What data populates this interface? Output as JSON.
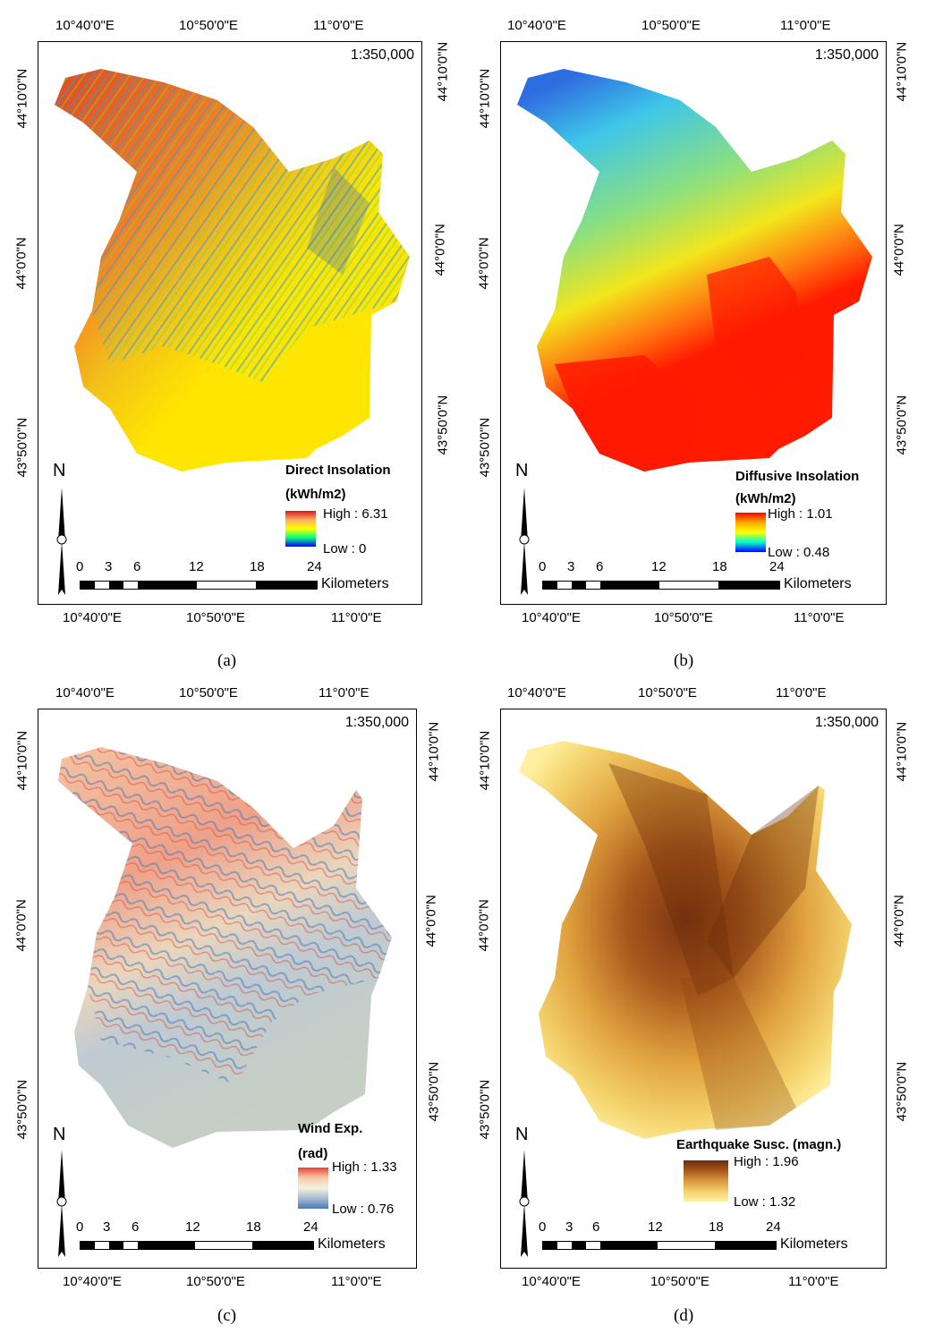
{
  "panels": [
    {
      "id": "a",
      "caption": "(a)",
      "scale_ratio": "1:350,000",
      "north_label": "N",
      "top_ticks": [
        "10°40'0\"E",
        "10°50'0\"E",
        "11°0'0\"E"
      ],
      "bottom_ticks": [
        "10°40'0\"E",
        "10°50'0\"E",
        "11°0'0\"E"
      ],
      "left_ticks": [
        "44°10'0\"N",
        "44°0'0\"N",
        "43°50'0\"N"
      ],
      "right_ticks": [
        "44°10'0\"N",
        "44°0'0\"N",
        "43°50'0\"N"
      ],
      "legend": {
        "title": "Direct Insolation",
        "unit": "(kWh/m2)",
        "high": "High : 6.31",
        "low": "Low : 0",
        "ramp": [
          "#d7191c",
          "#fdae61",
          "#ffff00",
          "#00ff80",
          "#0000ff"
        ]
      },
      "scalebar": {
        "labels": [
          "0",
          "3",
          "6",
          "12",
          "18",
          "24"
        ],
        "units": "Kilometers"
      }
    },
    {
      "id": "b",
      "caption": "(b)",
      "scale_ratio": "1:350,000",
      "north_label": "N",
      "top_ticks": [
        "10°40'0\"E",
        "10°50'0\"E",
        "11°0'0\"E"
      ],
      "bottom_ticks": [
        "10°40'0\"E",
        "10°50'0\"E",
        "11°0'0\"E"
      ],
      "left_ticks": [
        "44°10'0\"N",
        "44°0'0\"N",
        "43°50'0\"N"
      ],
      "right_ticks": [
        "44°10'0\"N",
        "44°0'0\"N",
        "43°50'0\"N"
      ],
      "legend": {
        "title": "Diffusive Insolation",
        "unit": "(kWh/m2)",
        "high": "High : 1.01",
        "low": "Low : 0.48",
        "ramp": [
          "#ff0000",
          "#ffaa00",
          "#ffff00",
          "#00ffcc",
          "#0000ff"
        ]
      },
      "scalebar": {
        "labels": [
          "0",
          "3",
          "6",
          "12",
          "18",
          "24"
        ],
        "units": "Kilometers"
      }
    },
    {
      "id": "c",
      "caption": "(c)",
      "scale_ratio": "1:350,000",
      "north_label": "N",
      "top_ticks": [
        "10°40'0\"E",
        "10°50'0\"E",
        "11°0'0\"E"
      ],
      "bottom_ticks": [
        "10°40'0\"E",
        "10°50'0\"E",
        "11°0'0\"E"
      ],
      "left_ticks": [
        "44°10'0\"N",
        "44°0'0\"N",
        "43°50'0\"N"
      ],
      "right_ticks": [
        "44°10'0\"N",
        "44°0'0\"N",
        "43°50'0\"N"
      ],
      "legend": {
        "title": "Wind Exp.",
        "unit": "(rad)",
        "high": "High : 1.33",
        "low": "Low : 0.76",
        "ramp": [
          "#e8413c",
          "#f7c9a8",
          "#f5f2e0",
          "#a7bcd1",
          "#4a78b5"
        ]
      },
      "scalebar": {
        "labels": [
          "0",
          "3",
          "6",
          "12",
          "18",
          "24"
        ],
        "units": "Kilometers"
      }
    },
    {
      "id": "d",
      "caption": "(d)",
      "scale_ratio": "1:350,000",
      "north_label": "N",
      "top_ticks": [
        "10°40'0\"E",
        "10°50'0\"E",
        "11°0'0\"E"
      ],
      "bottom_ticks": [
        "10°40'0\"E",
        "10°50'0\"E",
        "11°0'0\"E"
      ],
      "left_ticks": [
        "44°10'0\"N",
        "44°0'0\"N",
        "43°50'0\"N"
      ],
      "right_ticks": [
        "44°10'0\"N",
        "44°0'0\"N",
        "43°50'0\"N"
      ],
      "legend": {
        "title": "Earthquake Susc. (magn.)",
        "unit": "",
        "high": "High : 1.96",
        "low": "Low : 1.32",
        "ramp": [
          "#6b2a0a",
          "#a8581c",
          "#d99a3c",
          "#f2cf6a",
          "#fff3a6"
        ]
      },
      "scalebar": {
        "labels": [
          "0",
          "3",
          "6",
          "12",
          "18",
          "24"
        ],
        "units": "Kilometers"
      }
    }
  ]
}
